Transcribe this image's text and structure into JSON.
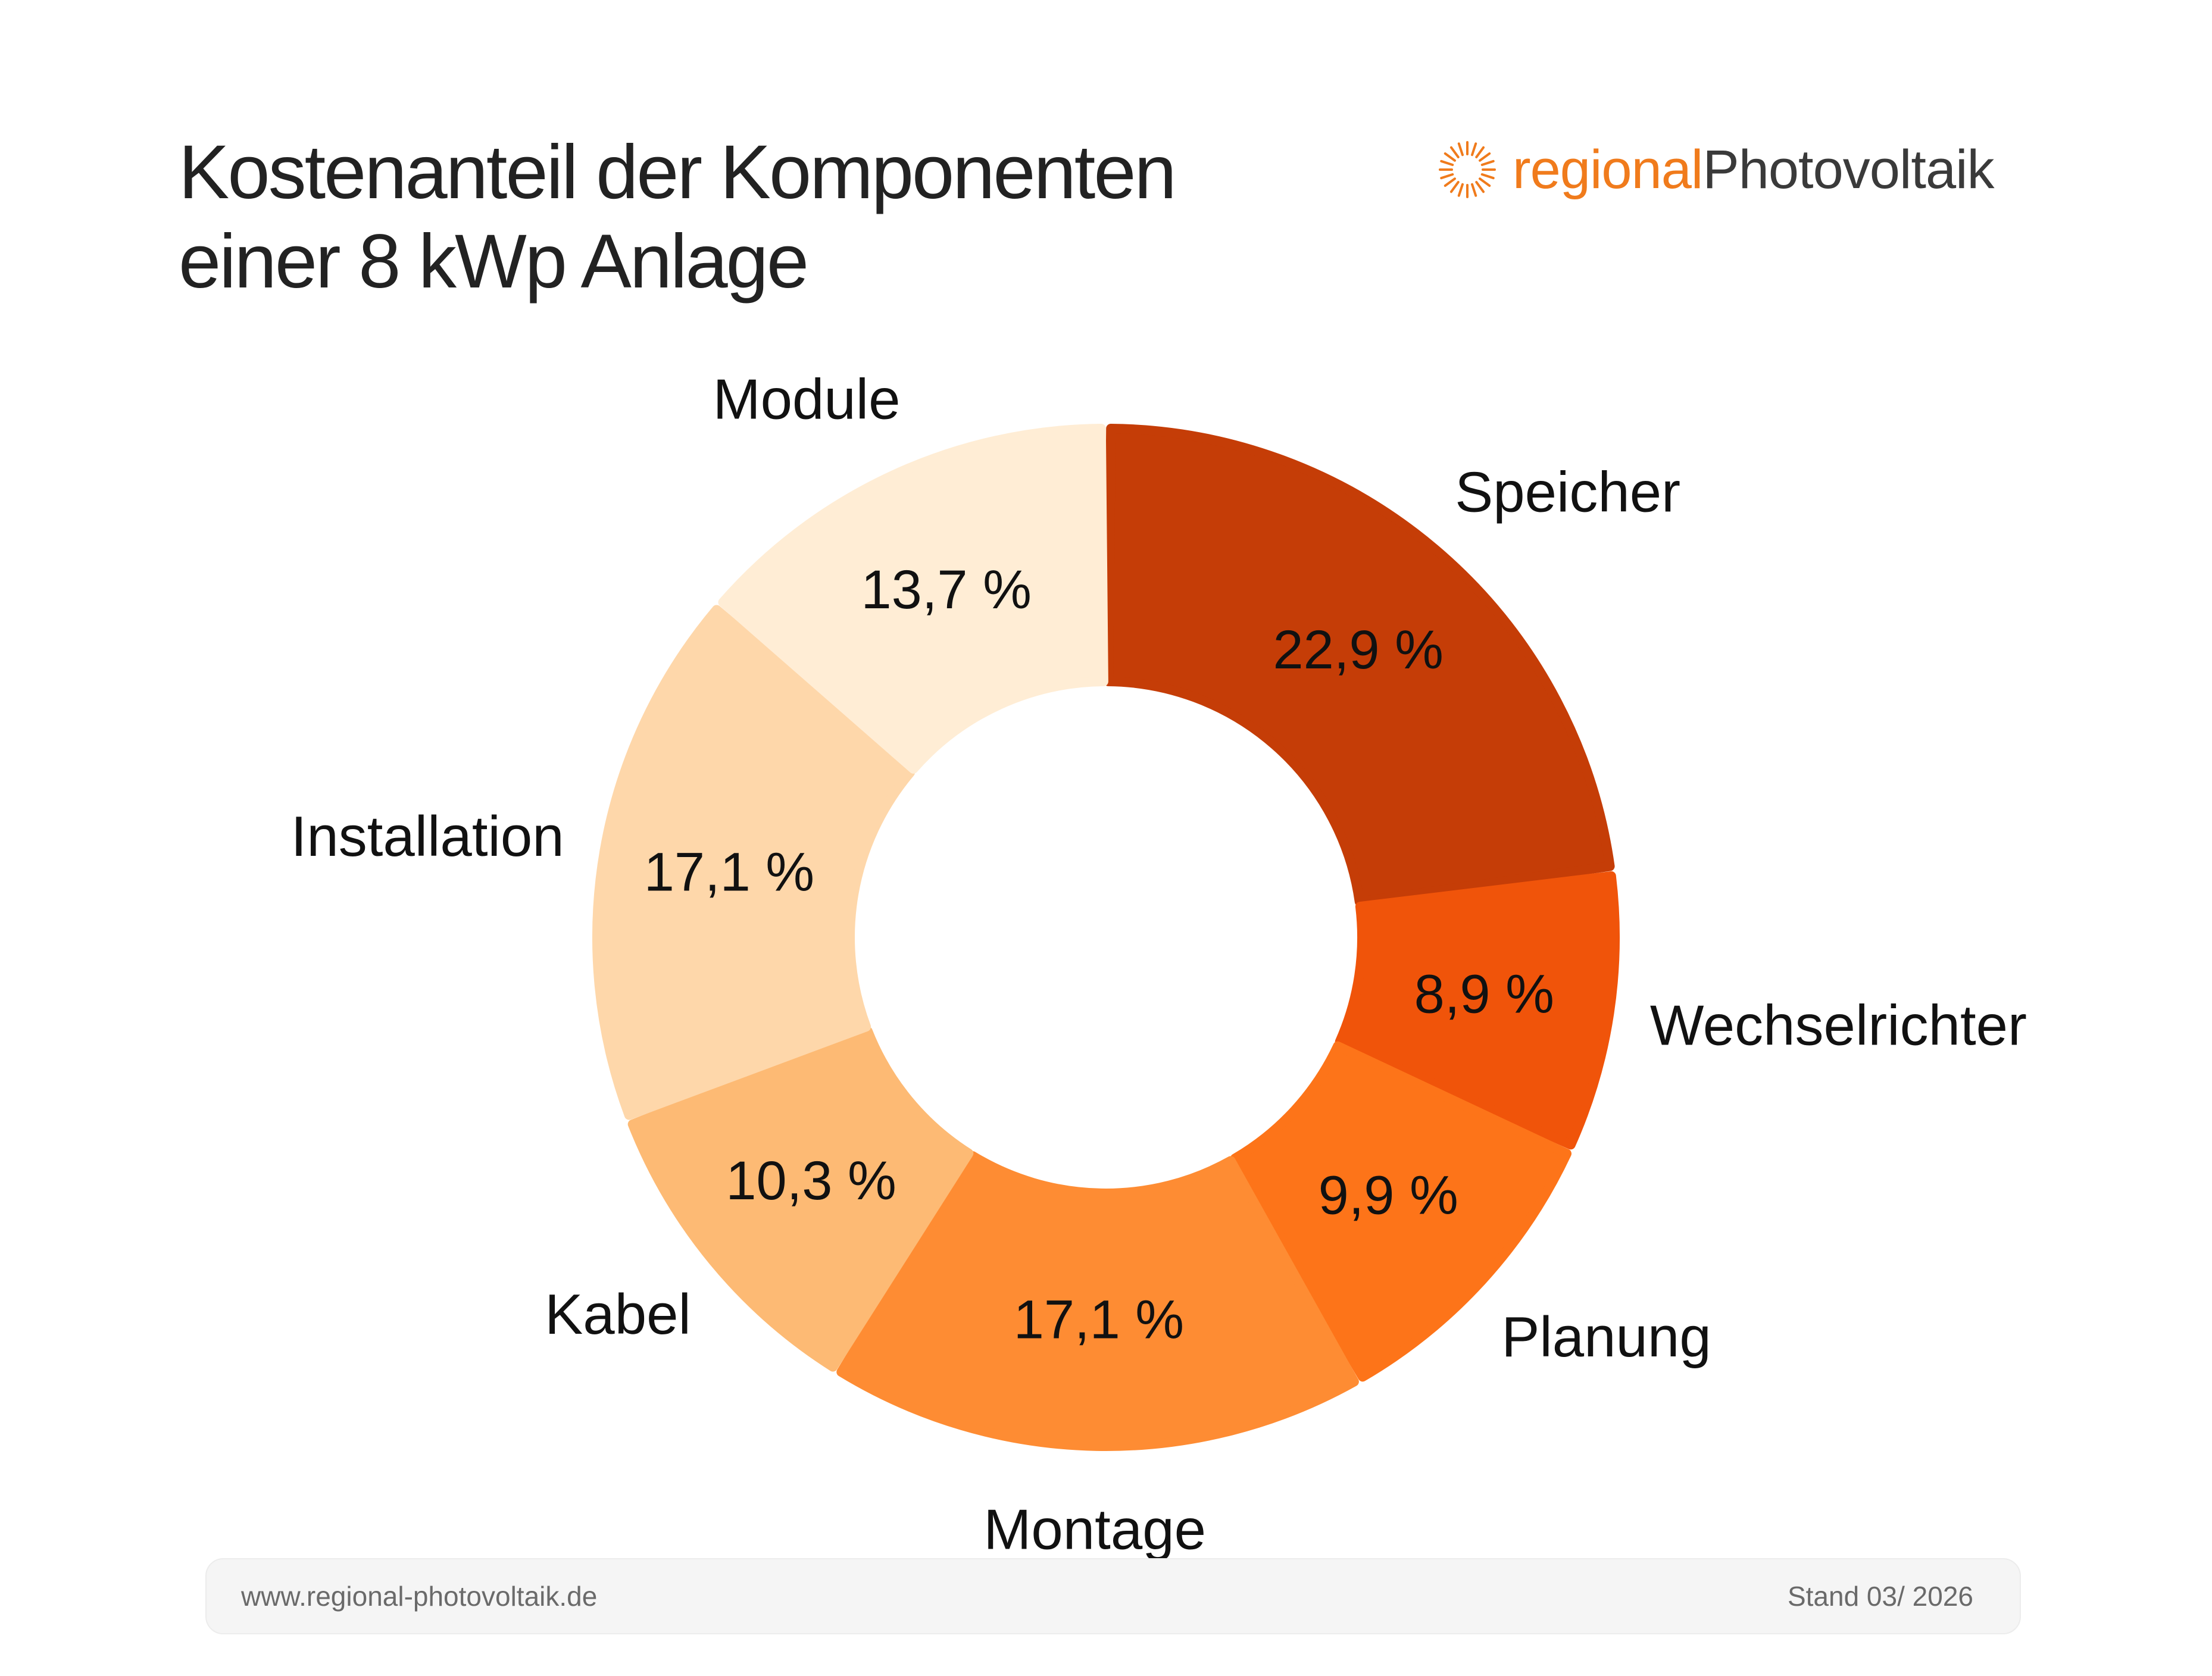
{
  "title": {
    "line1": "Kostenanteil der Komponenten",
    "line2": "einer 8 kWp Anlage"
  },
  "logo": {
    "part1": "regional",
    "part2": "Photovoltaik",
    "icon": "sun-icon",
    "colors": {
      "part1": "#f07b1c",
      "part2": "#3a3a3a"
    }
  },
  "chart_data": {
    "type": "pie",
    "variant": "donut",
    "categories": [
      "Speicher",
      "Wechselrichter",
      "Planung",
      "Montage",
      "Kabel",
      "Installation",
      "Module"
    ],
    "values": [
      22.9,
      8.9,
      9.9,
      17.1,
      10.3,
      17.1,
      13.7
    ],
    "value_labels": [
      "22,9 %",
      "8,9 %",
      "9,9 %",
      "17,1 %",
      "10,3 %",
      "17,1 %",
      "13,7 %"
    ],
    "colors": [
      "#c53d07",
      "#f0540a",
      "#fd7419",
      "#fe8c33",
      "#fdba74",
      "#fed7aa",
      "#ffedd5"
    ],
    "direction": "clockwise from top",
    "legend": "none",
    "title": ""
  },
  "footer": {
    "url": "www.regional-photovoltaik.de",
    "stand": "Stand 03/ 2026"
  }
}
